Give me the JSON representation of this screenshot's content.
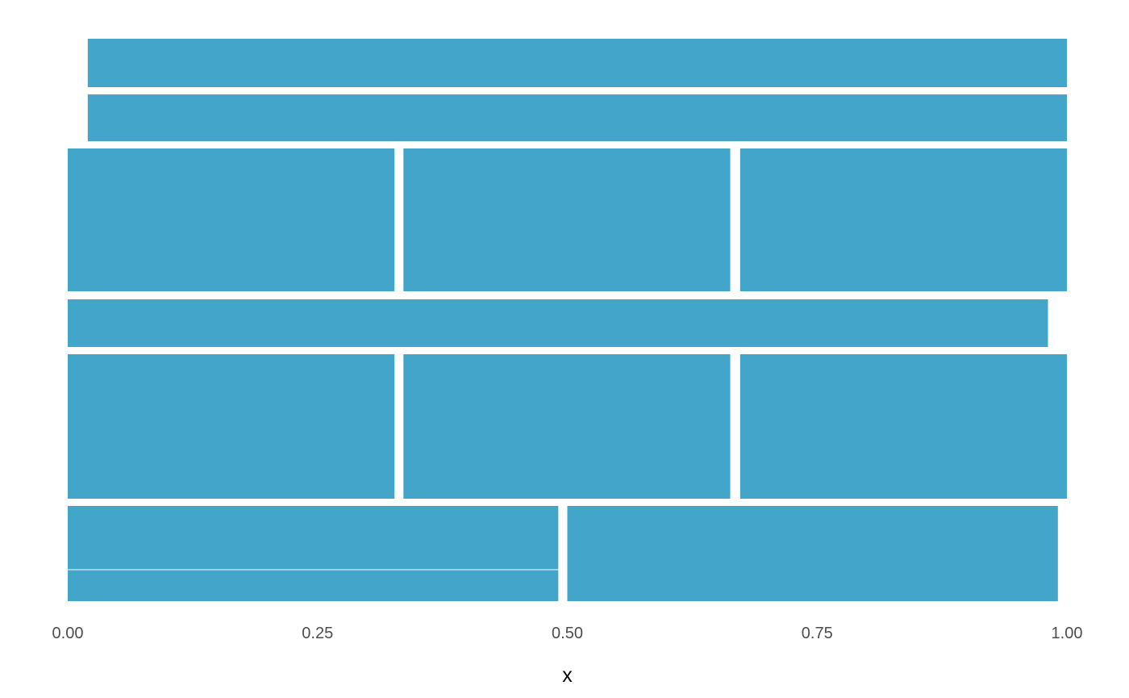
{
  "chart_data": {
    "type": "mosaic",
    "xlabel": "x",
    "ylabel": "",
    "xlim": [
      0,
      1
    ],
    "x_ticks": [
      "0.00",
      "0.25",
      "0.50",
      "0.75",
      "1.00"
    ],
    "x_tick_values": [
      0,
      0.25,
      0.5,
      0.75,
      1.0
    ],
    "fill_color": "#42A5C9",
    "grid": false,
    "legend": "none",
    "rows": [
      {
        "cells": [
          {
            "x0": 0.02,
            "x1": 1.0
          }
        ]
      },
      {
        "cells": [
          {
            "x0": 0.02,
            "x1": 1.0
          }
        ]
      },
      {
        "cells": [
          {
            "x0": 0.0,
            "x1": 0.327
          },
          {
            "x0": 0.336,
            "x1": 0.663
          },
          {
            "x0": 0.673,
            "x1": 1.0
          }
        ]
      },
      {
        "cells": [
          {
            "x0": 0.0,
            "x1": 0.981
          }
        ]
      },
      {
        "cells": [
          {
            "x0": 0.0,
            "x1": 0.327
          },
          {
            "x0": 0.336,
            "x1": 0.663
          },
          {
            "x0": 0.673,
            "x1": 1.0
          }
        ]
      },
      {
        "cells": [
          {
            "x0": 0.0,
            "x1": 0.491
          },
          {
            "x0": 0.5,
            "x1": 0.991
          }
        ]
      }
    ]
  }
}
